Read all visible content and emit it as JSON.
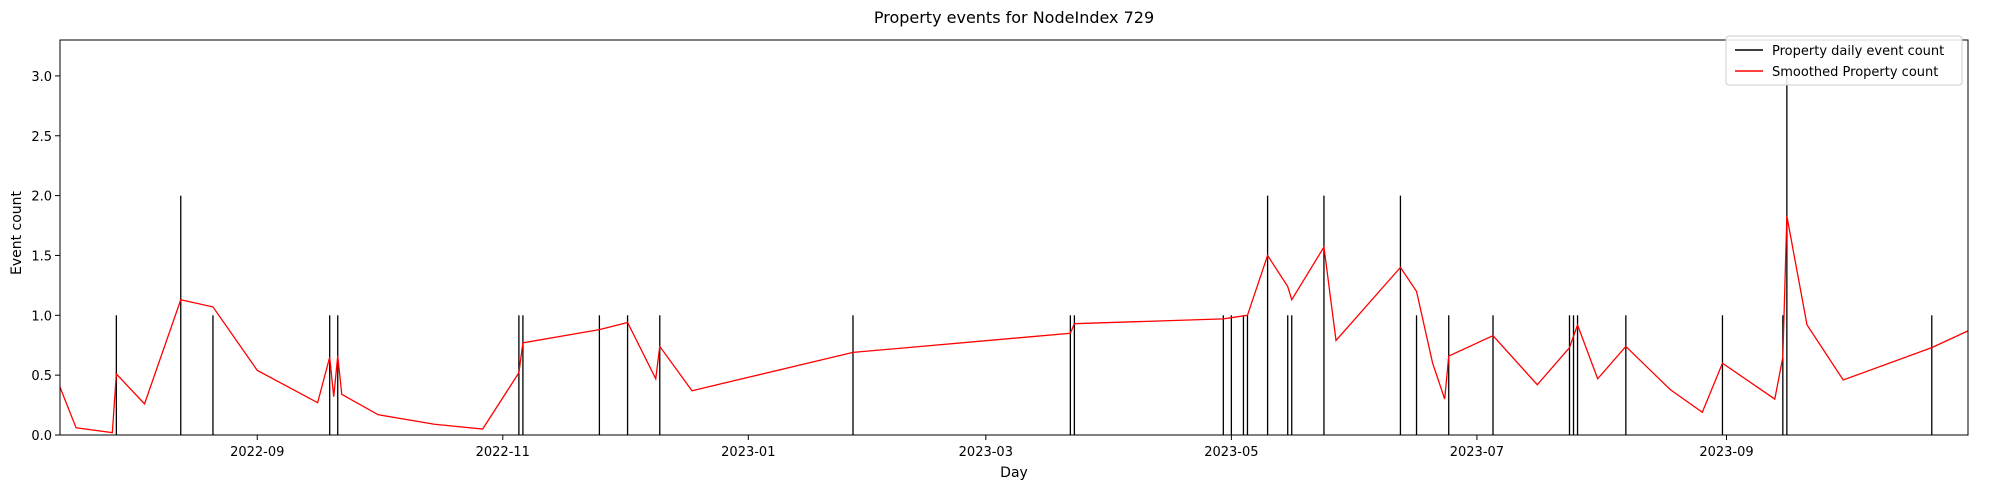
{
  "chart_data": {
    "type": "line",
    "title": "Property events for NodeIndex 729",
    "xlabel": "Day",
    "ylabel": "Event count",
    "xlim": [
      "2022-07-14",
      "2023-10-31"
    ],
    "ylim": [
      0,
      3.3
    ],
    "y_ticks": [
      "0.0",
      "0.5",
      "1.0",
      "1.5",
      "2.0",
      "2.5",
      "3.0"
    ],
    "x_ticks": [
      {
        "date": "2022-09-01",
        "label": "2022-09"
      },
      {
        "date": "2022-11-01",
        "label": "2022-11"
      },
      {
        "date": "2023-01-01",
        "label": "2023-01"
      },
      {
        "date": "2023-03-01",
        "label": "2023-03"
      },
      {
        "date": "2023-05-01",
        "label": "2023-05"
      },
      {
        "date": "2023-07-01",
        "label": "2023-07"
      },
      {
        "date": "2023-09-01",
        "label": "2023-09"
      }
    ],
    "grid": false,
    "legend_position": "top-right",
    "series": [
      {
        "name": "Property daily event count",
        "color": "#000000",
        "style": "vertical-lines",
        "points": [
          {
            "x": "2022-07-28",
            "y": 1
          },
          {
            "x": "2022-08-13",
            "y": 2
          },
          {
            "x": "2022-08-21",
            "y": 1
          },
          {
            "x": "2022-09-19",
            "y": 1
          },
          {
            "x": "2022-09-21",
            "y": 1
          },
          {
            "x": "2022-11-05",
            "y": 1
          },
          {
            "x": "2022-11-06",
            "y": 1
          },
          {
            "x": "2022-11-25",
            "y": 1
          },
          {
            "x": "2022-12-02",
            "y": 1
          },
          {
            "x": "2022-12-10",
            "y": 1
          },
          {
            "x": "2023-01-27",
            "y": 1
          },
          {
            "x": "2023-03-22",
            "y": 1
          },
          {
            "x": "2023-03-23",
            "y": 1
          },
          {
            "x": "2023-04-29",
            "y": 1
          },
          {
            "x": "2023-05-01",
            "y": 1
          },
          {
            "x": "2023-05-04",
            "y": 1
          },
          {
            "x": "2023-05-05",
            "y": 1
          },
          {
            "x": "2023-05-10",
            "y": 2
          },
          {
            "x": "2023-05-15",
            "y": 1
          },
          {
            "x": "2023-05-16",
            "y": 1
          },
          {
            "x": "2023-05-24",
            "y": 2
          },
          {
            "x": "2023-06-12",
            "y": 2
          },
          {
            "x": "2023-06-16",
            "y": 1
          },
          {
            "x": "2023-06-24",
            "y": 1
          },
          {
            "x": "2023-07-05",
            "y": 1
          },
          {
            "x": "2023-07-24",
            "y": 1
          },
          {
            "x": "2023-07-25",
            "y": 1
          },
          {
            "x": "2023-07-26",
            "y": 1
          },
          {
            "x": "2023-08-07",
            "y": 1
          },
          {
            "x": "2023-08-31",
            "y": 1
          },
          {
            "x": "2023-09-15",
            "y": 1
          },
          {
            "x": "2023-09-16",
            "y": 3
          },
          {
            "x": "2023-10-22",
            "y": 1
          }
        ]
      },
      {
        "name": "Smoothed Property count",
        "color": "#ff0000",
        "style": "line",
        "points": [
          {
            "x": "2022-07-14",
            "y": 0.4
          },
          {
            "x": "2022-07-18",
            "y": 0.06
          },
          {
            "x": "2022-07-27",
            "y": 0.02
          },
          {
            "x": "2022-07-28",
            "y": 0.51
          },
          {
            "x": "2022-08-04",
            "y": 0.26
          },
          {
            "x": "2022-08-13",
            "y": 1.13
          },
          {
            "x": "2022-08-21",
            "y": 1.07
          },
          {
            "x": "2022-09-01",
            "y": 0.54
          },
          {
            "x": "2022-09-16",
            "y": 0.27
          },
          {
            "x": "2022-09-19",
            "y": 0.65
          },
          {
            "x": "2022-09-20",
            "y": 0.32
          },
          {
            "x": "2022-09-21",
            "y": 0.66
          },
          {
            "x": "2022-09-22",
            "y": 0.34
          },
          {
            "x": "2022-10-01",
            "y": 0.17
          },
          {
            "x": "2022-10-15",
            "y": 0.09
          },
          {
            "x": "2022-10-27",
            "y": 0.05
          },
          {
            "x": "2022-11-05",
            "y": 0.52
          },
          {
            "x": "2022-11-06",
            "y": 0.77
          },
          {
            "x": "2022-11-25",
            "y": 0.88
          },
          {
            "x": "2022-12-02",
            "y": 0.94
          },
          {
            "x": "2022-12-09",
            "y": 0.47
          },
          {
            "x": "2022-12-10",
            "y": 0.74
          },
          {
            "x": "2022-12-18",
            "y": 0.37
          },
          {
            "x": "2023-01-27",
            "y": 0.69
          },
          {
            "x": "2023-03-22",
            "y": 0.85
          },
          {
            "x": "2023-03-23",
            "y": 0.93
          },
          {
            "x": "2023-04-29",
            "y": 0.97
          },
          {
            "x": "2023-05-01",
            "y": 0.98
          },
          {
            "x": "2023-05-05",
            "y": 1.0
          },
          {
            "x": "2023-05-10",
            "y": 1.5
          },
          {
            "x": "2023-05-15",
            "y": 1.24
          },
          {
            "x": "2023-05-16",
            "y": 1.13
          },
          {
            "x": "2023-05-24",
            "y": 1.57
          },
          {
            "x": "2023-05-27",
            "y": 0.79
          },
          {
            "x": "2023-06-12",
            "y": 1.4
          },
          {
            "x": "2023-06-16",
            "y": 1.2
          },
          {
            "x": "2023-06-20",
            "y": 0.6
          },
          {
            "x": "2023-06-23",
            "y": 0.3
          },
          {
            "x": "2023-06-24",
            "y": 0.66
          },
          {
            "x": "2023-07-05",
            "y": 0.83
          },
          {
            "x": "2023-07-16",
            "y": 0.42
          },
          {
            "x": "2023-07-24",
            "y": 0.73
          },
          {
            "x": "2023-07-26",
            "y": 0.92
          },
          {
            "x": "2023-07-31",
            "y": 0.47
          },
          {
            "x": "2023-08-07",
            "y": 0.74
          },
          {
            "x": "2023-08-18",
            "y": 0.38
          },
          {
            "x": "2023-08-26",
            "y": 0.19
          },
          {
            "x": "2023-08-31",
            "y": 0.6
          },
          {
            "x": "2023-09-13",
            "y": 0.3
          },
          {
            "x": "2023-09-15",
            "y": 0.65
          },
          {
            "x": "2023-09-16",
            "y": 1.83
          },
          {
            "x": "2023-09-21",
            "y": 0.92
          },
          {
            "x": "2023-09-30",
            "y": 0.46
          },
          {
            "x": "2023-10-22",
            "y": 0.73
          },
          {
            "x": "2023-10-31",
            "y": 0.87
          }
        ]
      }
    ]
  }
}
